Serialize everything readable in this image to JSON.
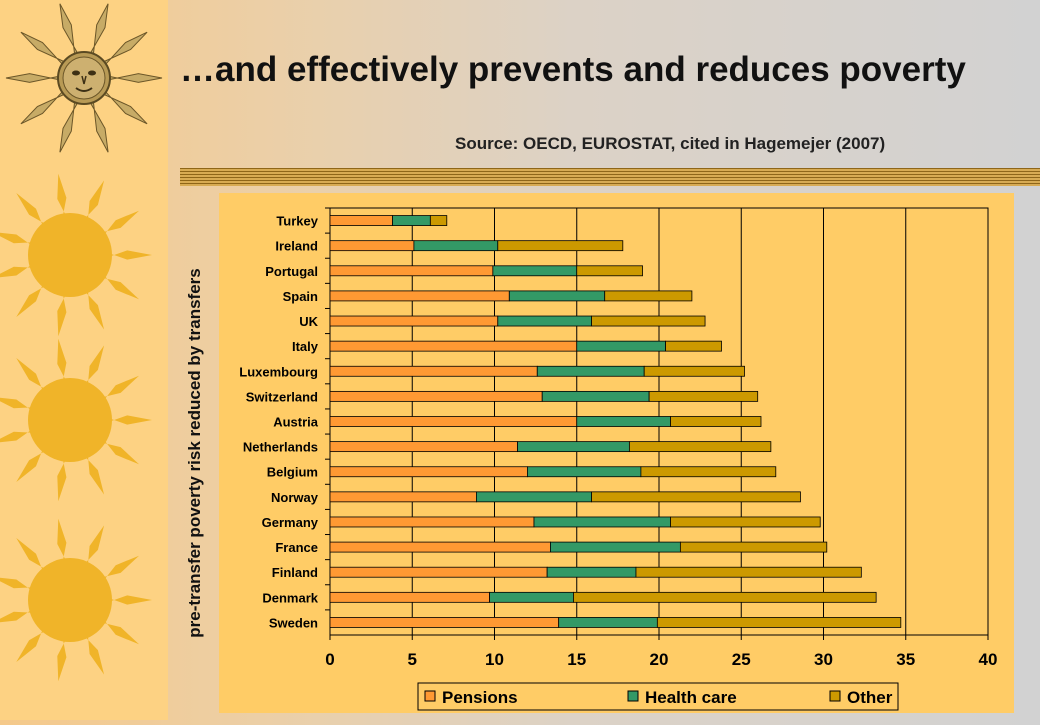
{
  "slide": {
    "title": "…and effectively prevents and reduces poverty",
    "source": "Source: OECD, EUROSTAT, cited in Hagemejer (2007)"
  },
  "decorations": {
    "icons": [
      "sun-face-icon",
      "sun-icon",
      "sun-icon",
      "sun-icon"
    ],
    "strip_color": "#fdd283"
  },
  "chart_data": {
    "type": "bar",
    "orientation": "horizontal",
    "stacked": true,
    "categories": [
      "Turkey",
      "Ireland",
      "Portugal",
      "Spain",
      "UK",
      "Italy",
      "Luxembourg",
      "Switzerland",
      "Austria",
      "Netherlands",
      "Belgium",
      "Norway",
      "Germany",
      "France",
      "Finland",
      "Denmark",
      "Sweden"
    ],
    "series": [
      {
        "name": "Pensions",
        "color": "#ff9933",
        "values": [
          3.8,
          5.1,
          9.9,
          10.9,
          10.2,
          15.0,
          12.6,
          12.9,
          15.0,
          11.4,
          12.0,
          8.9,
          12.4,
          13.4,
          13.2,
          9.7,
          13.9
        ]
      },
      {
        "name": "Health care",
        "color": "#339966",
        "values": [
          2.3,
          5.1,
          5.1,
          5.8,
          5.7,
          5.4,
          6.5,
          6.5,
          5.7,
          6.8,
          6.9,
          7.0,
          8.3,
          7.9,
          5.4,
          5.1,
          6.0
        ]
      },
      {
        "name": "Other",
        "color": "#cc9900",
        "values": [
          1.0,
          7.6,
          4.0,
          5.3,
          6.9,
          3.4,
          6.1,
          6.6,
          5.5,
          8.6,
          8.2,
          12.7,
          9.1,
          8.9,
          13.7,
          18.4,
          14.8
        ]
      }
    ],
    "ylabel": "pre-transfer poverty risk reduced by transfers",
    "xlim": [
      0,
      40
    ],
    "xticks": [
      "0",
      "5",
      "10",
      "15",
      "20",
      "25",
      "30",
      "35",
      "40"
    ],
    "grid": "vertical",
    "legend_position": "bottom",
    "plot_background": "#ffcc66"
  }
}
